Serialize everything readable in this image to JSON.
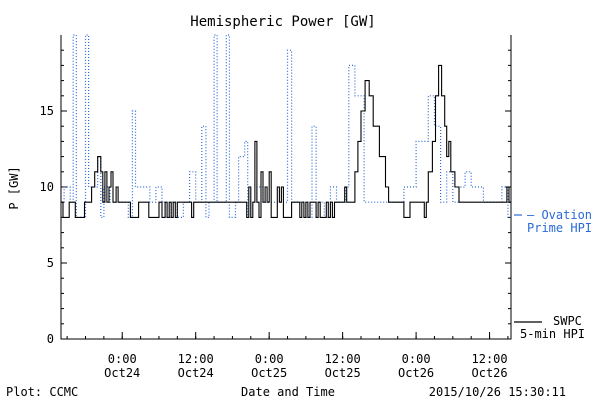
{
  "chart_data": {
    "type": "line",
    "title": "Hemispheric Power [GW]",
    "ylabel": "P [GW]",
    "xlabel": "Date and Time",
    "footer_left": "Plot: CCMC",
    "footer_right": "2015/10/26 15:30:11",
    "x_range": [
      "2015-10-23 14:00",
      "2015-10-26 15:30"
    ],
    "ylim": [
      0,
      20
    ],
    "y_ticks": [
      0,
      5,
      10,
      15
    ],
    "y_tick_labels": [
      "0",
      "5",
      "10",
      "15"
    ],
    "x_ticks": [
      {
        "t": "2015-10-24 00:00",
        "line1": "0:00",
        "line2": "Oct24"
      },
      {
        "t": "2015-10-24 12:00",
        "line1": "12:00",
        "line2": "Oct24"
      },
      {
        "t": "2015-10-25 00:00",
        "line1": "0:00",
        "line2": "Oct25"
      },
      {
        "t": "2015-10-25 12:00",
        "line1": "12:00",
        "line2": "Oct25"
      },
      {
        "t": "2015-10-26 00:00",
        "line1": "0:00",
        "line2": "Oct26"
      },
      {
        "t": "2015-10-26 12:00",
        "line1": "12:00",
        "line2": "Oct26"
      }
    ],
    "legend_placement": "right of plot",
    "series": [
      {
        "id": "ovation",
        "legend_line1": "Ovation",
        "legend_line2": "Prime HPI",
        "color": "#2a6ad8",
        "style": "dotted",
        "points": [
          [
            "2015-10-23 14:00",
            9
          ],
          [
            "2015-10-23 14:30",
            10
          ],
          [
            "2015-10-23 15:30",
            9
          ],
          [
            "2015-10-23 16:00",
            20
          ],
          [
            "2015-10-23 16:30",
            8
          ],
          [
            "2015-10-23 18:00",
            20
          ],
          [
            "2015-10-23 18:30",
            10
          ],
          [
            "2015-10-23 20:00",
            12
          ],
          [
            "2015-10-23 20:30",
            8
          ],
          [
            "2015-10-23 21:00",
            10
          ],
          [
            "2015-10-23 22:00",
            9
          ],
          [
            "2015-10-24 00:00",
            9
          ],
          [
            "2015-10-24 01:00",
            8
          ],
          [
            "2015-10-24 01:40",
            15
          ],
          [
            "2015-10-24 02:10",
            10
          ],
          [
            "2015-10-24 04:30",
            9
          ],
          [
            "2015-10-24 05:30",
            10
          ],
          [
            "2015-10-24 06:30",
            9
          ],
          [
            "2015-10-24 07:00",
            8
          ],
          [
            "2015-10-24 08:00",
            9
          ],
          [
            "2015-10-24 09:00",
            8
          ],
          [
            "2015-10-24 10:00",
            9
          ],
          [
            "2015-10-24 11:00",
            11
          ],
          [
            "2015-10-24 12:00",
            9
          ],
          [
            "2015-10-24 13:00",
            14
          ],
          [
            "2015-10-24 13:40",
            8
          ],
          [
            "2015-10-24 14:10",
            9
          ],
          [
            "2015-10-24 15:00",
            20
          ],
          [
            "2015-10-24 15:30",
            9
          ],
          [
            "2015-10-24 17:00",
            20
          ],
          [
            "2015-10-24 17:30",
            8
          ],
          [
            "2015-10-24 18:30",
            9
          ],
          [
            "2015-10-24 19:00",
            12
          ],
          [
            "2015-10-24 20:00",
            13
          ],
          [
            "2015-10-24 20:30",
            8
          ],
          [
            "2015-10-24 21:00",
            9
          ],
          [
            "2015-10-24 22:00",
            10
          ],
          [
            "2015-10-24 23:00",
            9
          ],
          [
            "2015-10-25 02:00",
            9
          ],
          [
            "2015-10-25 03:00",
            19
          ],
          [
            "2015-10-25 03:40",
            9
          ],
          [
            "2015-10-25 05:00",
            9
          ],
          [
            "2015-10-25 06:00",
            8
          ],
          [
            "2015-10-25 07:00",
            14
          ],
          [
            "2015-10-25 07:40",
            9
          ],
          [
            "2015-10-25 09:00",
            8
          ],
          [
            "2015-10-25 10:00",
            10
          ],
          [
            "2015-10-25 11:00",
            9
          ],
          [
            "2015-10-25 12:00",
            9
          ],
          [
            "2015-10-25 12:30",
            10
          ],
          [
            "2015-10-25 13:00",
            18
          ],
          [
            "2015-10-25 14:00",
            16
          ],
          [
            "2015-10-25 15:00",
            16
          ],
          [
            "2015-10-25 15:30",
            9
          ],
          [
            "2015-10-25 21:00",
            9
          ],
          [
            "2015-10-25 22:00",
            10
          ],
          [
            "2015-10-25 23:00",
            10
          ],
          [
            "2015-10-26 00:00",
            13
          ],
          [
            "2015-10-26 01:00",
            13
          ],
          [
            "2015-10-26 02:00",
            16
          ],
          [
            "2015-10-26 03:00",
            14
          ],
          [
            "2015-10-26 04:00",
            9
          ],
          [
            "2015-10-26 05:00",
            11
          ],
          [
            "2015-10-26 06:00",
            9
          ],
          [
            "2015-10-26 07:00",
            10
          ],
          [
            "2015-10-26 08:00",
            11
          ],
          [
            "2015-10-26 09:00",
            10
          ],
          [
            "2015-10-26 10:00",
            10
          ],
          [
            "2015-10-26 11:00",
            9
          ],
          [
            "2015-10-26 13:00",
            9
          ],
          [
            "2015-10-26 14:00",
            10
          ],
          [
            "2015-10-26 15:00",
            8
          ],
          [
            "2015-10-26 15:30",
            8
          ]
        ]
      },
      {
        "id": "swpc",
        "legend_line1": "SWPC",
        "legend_line2": "5-min HPI",
        "color": "#000000",
        "style": "solid",
        "points": [
          [
            "2015-10-23 14:00",
            9
          ],
          [
            "2015-10-23 14:20",
            8
          ],
          [
            "2015-10-23 15:00",
            8
          ],
          [
            "2015-10-23 15:20",
            9
          ],
          [
            "2015-10-23 16:00",
            9
          ],
          [
            "2015-10-23 16:20",
            8
          ],
          [
            "2015-10-23 17:30",
            8
          ],
          [
            "2015-10-23 17:50",
            9
          ],
          [
            "2015-10-23 18:30",
            9
          ],
          [
            "2015-10-23 19:00",
            10
          ],
          [
            "2015-10-23 19:30",
            11
          ],
          [
            "2015-10-23 20:00",
            12
          ],
          [
            "2015-10-23 20:30",
            11
          ],
          [
            "2015-10-23 20:50",
            9
          ],
          [
            "2015-10-23 21:10",
            11
          ],
          [
            "2015-10-23 21:30",
            9
          ],
          [
            "2015-10-23 21:50",
            10
          ],
          [
            "2015-10-23 22:10",
            11
          ],
          [
            "2015-10-23 22:30",
            9
          ],
          [
            "2015-10-23 23:00",
            10
          ],
          [
            "2015-10-23 23:20",
            9
          ],
          [
            "2015-10-24 01:00",
            9
          ],
          [
            "2015-10-24 01:20",
            8
          ],
          [
            "2015-10-24 02:20",
            8
          ],
          [
            "2015-10-24 02:40",
            9
          ],
          [
            "2015-10-24 04:00",
            9
          ],
          [
            "2015-10-24 04:20",
            8
          ],
          [
            "2015-10-24 05:40",
            8
          ],
          [
            "2015-10-24 06:00",
            9
          ],
          [
            "2015-10-24 06:30",
            8
          ],
          [
            "2015-10-24 07:00",
            9
          ],
          [
            "2015-10-24 07:20",
            8
          ],
          [
            "2015-10-24 07:40",
            9
          ],
          [
            "2015-10-24 08:00",
            8
          ],
          [
            "2015-10-24 08:20",
            9
          ],
          [
            "2015-10-24 08:40",
            8
          ],
          [
            "2015-10-24 09:00",
            9
          ],
          [
            "2015-10-24 11:00",
            9
          ],
          [
            "2015-10-24 11:20",
            8
          ],
          [
            "2015-10-24 11:40",
            9
          ],
          [
            "2015-10-24 20:00",
            9
          ],
          [
            "2015-10-24 20:20",
            8
          ],
          [
            "2015-10-24 20:40",
            10
          ],
          [
            "2015-10-24 21:00",
            8
          ],
          [
            "2015-10-24 21:20",
            9
          ],
          [
            "2015-10-24 21:40",
            13
          ],
          [
            "2015-10-24 22:00",
            9
          ],
          [
            "2015-10-24 22:20",
            8
          ],
          [
            "2015-10-24 22:40",
            11
          ],
          [
            "2015-10-24 23:00",
            9
          ],
          [
            "2015-10-24 23:20",
            10
          ],
          [
            "2015-10-24 23:40",
            9
          ],
          [
            "2015-10-25 00:00",
            11
          ],
          [
            "2015-10-25 00:20",
            8
          ],
          [
            "2015-10-25 01:00",
            8
          ],
          [
            "2015-10-25 01:20",
            10
          ],
          [
            "2015-10-25 01:40",
            9
          ],
          [
            "2015-10-25 02:00",
            10
          ],
          [
            "2015-10-25 02:20",
            8
          ],
          [
            "2015-10-25 03:20",
            8
          ],
          [
            "2015-10-25 03:40",
            9
          ],
          [
            "2015-10-25 04:40",
            9
          ],
          [
            "2015-10-25 05:00",
            8
          ],
          [
            "2015-10-25 05:20",
            9
          ],
          [
            "2015-10-25 05:40",
            8
          ],
          [
            "2015-10-25 06:00",
            9
          ],
          [
            "2015-10-25 06:20",
            8
          ],
          [
            "2015-10-25 06:40",
            9
          ],
          [
            "2015-10-25 07:20",
            9
          ],
          [
            "2015-10-25 07:40",
            8
          ],
          [
            "2015-10-25 08:00",
            9
          ],
          [
            "2015-10-25 08:20",
            8
          ],
          [
            "2015-10-25 09:00",
            8
          ],
          [
            "2015-10-25 09:20",
            9
          ],
          [
            "2015-10-25 09:40",
            8
          ],
          [
            "2015-10-25 10:00",
            9
          ],
          [
            "2015-10-25 10:20",
            8
          ],
          [
            "2015-10-25 10:40",
            9
          ],
          [
            "2015-10-25 12:00",
            9
          ],
          [
            "2015-10-25 12:20",
            10
          ],
          [
            "2015-10-25 12:40",
            9
          ],
          [
            "2015-10-25 13:30",
            9
          ],
          [
            "2015-10-25 14:00",
            11
          ],
          [
            "2015-10-25 14:30",
            13
          ],
          [
            "2015-10-25 15:00",
            15
          ],
          [
            "2015-10-25 15:40",
            17
          ],
          [
            "2015-10-25 16:20",
            16
          ],
          [
            "2015-10-25 17:00",
            14
          ],
          [
            "2015-10-25 18:00",
            12
          ],
          [
            "2015-10-25 19:00",
            10
          ],
          [
            "2015-10-25 19:30",
            9
          ],
          [
            "2015-10-25 21:30",
            9
          ],
          [
            "2015-10-25 22:00",
            8
          ],
          [
            "2015-10-25 22:30",
            8
          ],
          [
            "2015-10-25 23:00",
            9
          ],
          [
            "2015-10-26 01:00",
            9
          ],
          [
            "2015-10-26 01:20",
            8
          ],
          [
            "2015-10-26 01:40",
            9
          ],
          [
            "2015-10-26 02:00",
            11
          ],
          [
            "2015-10-26 02:40",
            13
          ],
          [
            "2015-10-26 03:10",
            16
          ],
          [
            "2015-10-26 03:40",
            18
          ],
          [
            "2015-10-26 04:10",
            16
          ],
          [
            "2015-10-26 04:40",
            14
          ],
          [
            "2015-10-26 05:00",
            12
          ],
          [
            "2015-10-26 05:20",
            13
          ],
          [
            "2015-10-26 05:40",
            11
          ],
          [
            "2015-10-26 06:20",
            10
          ],
          [
            "2015-10-26 07:00",
            9
          ],
          [
            "2015-10-26 14:30",
            9
          ],
          [
            "2015-10-26 14:50",
            10
          ],
          [
            "2015-10-26 15:10",
            9
          ],
          [
            "2015-10-26 15:30",
            9
          ]
        ]
      }
    ]
  }
}
